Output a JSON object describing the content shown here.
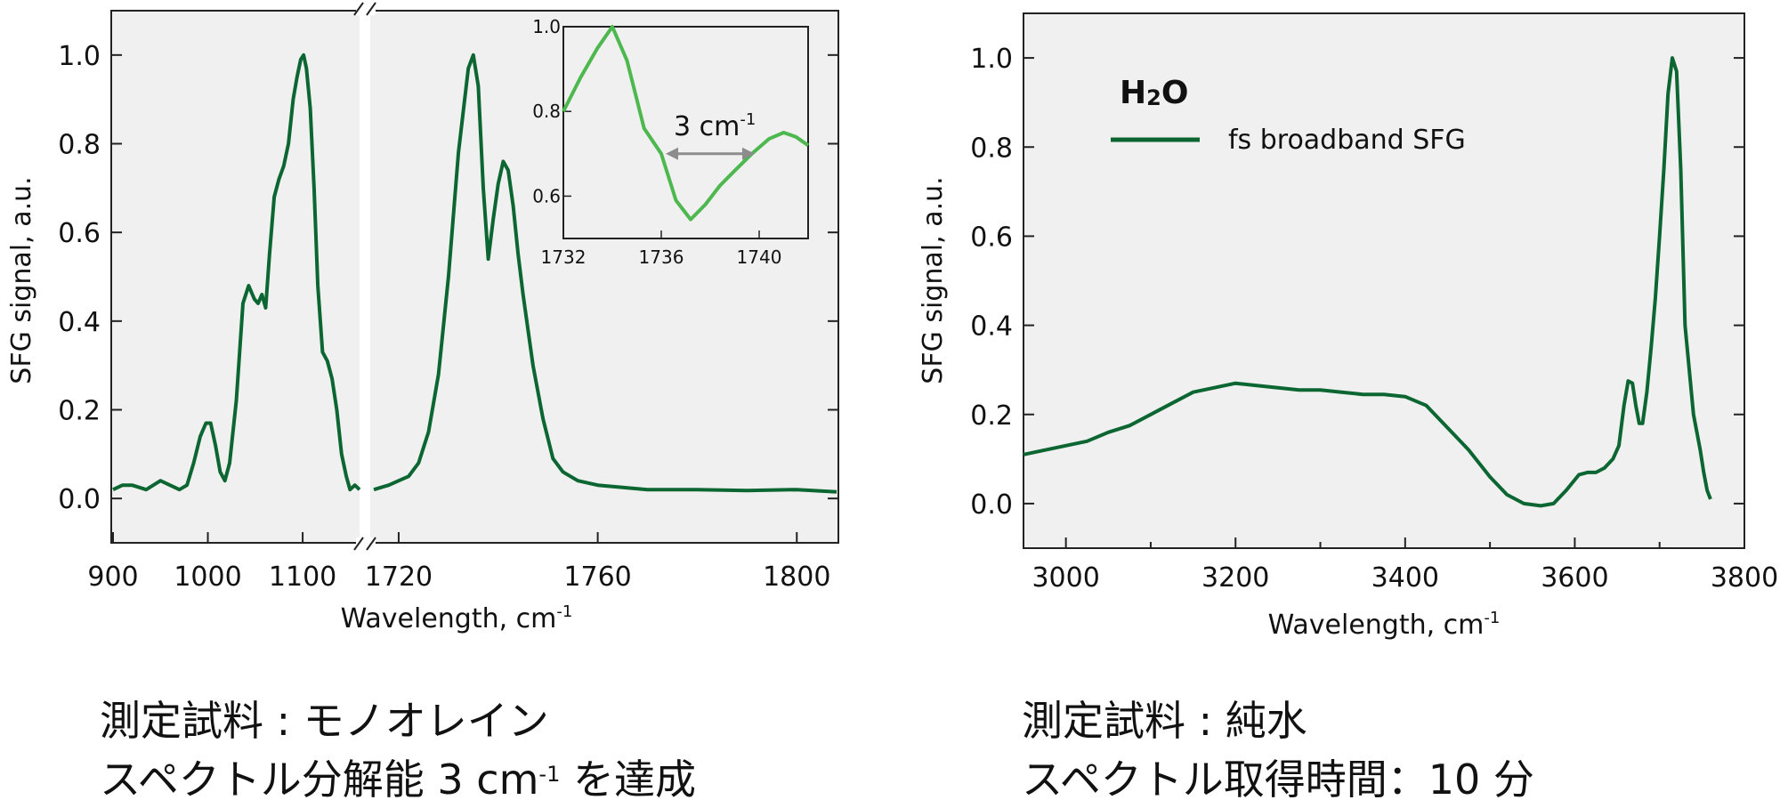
{
  "colors": {
    "line": "#0b6632",
    "inset_line": "#4cb84e",
    "plot_bg": "#f0f0f0",
    "arrow": "#8c8c8c"
  },
  "chart_data": [
    {
      "type": "line",
      "panel": "left",
      "ylabel": "SFG signal, a.u.",
      "xlabel": "Wavelength, cm",
      "xlabel_sup": "-1",
      "ylim": [
        -0.1,
        1.1
      ],
      "yticks": [
        0.0,
        0.2,
        0.4,
        0.6,
        0.8,
        1.0
      ],
      "ytick_labels": [
        "0.0",
        "0.2",
        "0.4",
        "0.6",
        "0.8",
        "1.0"
      ],
      "broken_x_axis": true,
      "xlim_segment1": [
        900,
        1160
      ],
      "xlim_segment2": [
        1715,
        1808
      ],
      "xtick_labels_segment1": [
        "900",
        "1000",
        "1100"
      ],
      "xticks_segment1": [
        900,
        1000,
        1100
      ],
      "xtick_labels_segment2": [
        "1720",
        "1760",
        "1800"
      ],
      "xticks_segment2": [
        1720,
        1760,
        1800
      ],
      "series": [
        {
          "segment": 1,
          "x": [
            900,
            910,
            920,
            935,
            950,
            960,
            970,
            978,
            985,
            992,
            998,
            1003,
            1008,
            1013,
            1018,
            1023,
            1030,
            1037,
            1043,
            1049,
            1053,
            1057,
            1061,
            1065,
            1070,
            1075,
            1080,
            1085,
            1090,
            1094,
            1098,
            1101,
            1104,
            1108,
            1112,
            1116,
            1121,
            1126,
            1131,
            1136,
            1141,
            1146,
            1150,
            1155,
            1160
          ],
          "y": [
            0.02,
            0.03,
            0.03,
            0.02,
            0.04,
            0.03,
            0.02,
            0.03,
            0.08,
            0.14,
            0.17,
            0.17,
            0.12,
            0.06,
            0.04,
            0.08,
            0.22,
            0.44,
            0.48,
            0.45,
            0.44,
            0.46,
            0.43,
            0.55,
            0.68,
            0.72,
            0.75,
            0.8,
            0.9,
            0.95,
            0.99,
            1.0,
            0.97,
            0.88,
            0.7,
            0.48,
            0.33,
            0.31,
            0.27,
            0.2,
            0.1,
            0.05,
            0.02,
            0.03,
            0.02
          ]
        },
        {
          "segment": 2,
          "x": [
            1715,
            1718,
            1720,
            1722,
            1724,
            1726,
            1728,
            1730,
            1732,
            1734,
            1735,
            1736,
            1737,
            1738,
            1739,
            1740,
            1741,
            1742,
            1743,
            1744,
            1745,
            1747,
            1749,
            1751,
            1753,
            1756,
            1760,
            1765,
            1770,
            1780,
            1790,
            1800,
            1808
          ],
          "y": [
            0.02,
            0.03,
            0.04,
            0.05,
            0.08,
            0.15,
            0.28,
            0.5,
            0.78,
            0.97,
            1.0,
            0.93,
            0.7,
            0.54,
            0.63,
            0.71,
            0.76,
            0.74,
            0.66,
            0.55,
            0.46,
            0.3,
            0.18,
            0.09,
            0.06,
            0.04,
            0.03,
            0.025,
            0.02,
            0.02,
            0.018,
            0.02,
            0.015
          ]
        }
      ],
      "inset": {
        "type": "line",
        "xlim": [
          1732,
          1742
        ],
        "ylim": [
          0.5,
          1.0
        ],
        "xticks": [
          1732,
          1736,
          1740
        ],
        "xtick_labels": [
          "1732",
          "1736",
          "1740"
        ],
        "yticks": [
          0.6,
          0.8,
          1.0
        ],
        "ytick_labels": [
          "0.6",
          "0.8",
          "1.0"
        ],
        "x": [
          1732,
          1732.7,
          1733.4,
          1734,
          1734.6,
          1735.3,
          1736,
          1736.6,
          1737.2,
          1737.8,
          1738.4,
          1739,
          1739.7,
          1740.4,
          1741,
          1741.5,
          1742
        ],
        "y": [
          0.8,
          0.88,
          0.95,
          1.0,
          0.92,
          0.76,
          0.7,
          0.59,
          0.545,
          0.58,
          0.625,
          0.66,
          0.7,
          0.735,
          0.75,
          0.74,
          0.72
        ],
        "annotation": {
          "text": "3 cm",
          "sup": "-1",
          "arrow_x": [
            1736,
            1740
          ],
          "arrow_y": 0.7
        }
      }
    },
    {
      "type": "line",
      "panel": "right",
      "ylabel": "SFG signal, a.u.",
      "xlabel": "Wavelength, cm",
      "xlabel_sup": "-1",
      "xlim": [
        2950,
        3800
      ],
      "ylim": [
        -0.1,
        1.1
      ],
      "xticks": [
        3000,
        3200,
        3400,
        3600,
        3800
      ],
      "xtick_labels": [
        "3000",
        "3200",
        "3400",
        "3600",
        "3800"
      ],
      "yticks": [
        0.0,
        0.2,
        0.4,
        0.6,
        0.8,
        1.0
      ],
      "ytick_labels": [
        "0.0",
        "0.2",
        "0.4",
        "0.6",
        "0.8",
        "1.0"
      ],
      "legend": {
        "title": "H",
        "title_sub": "2",
        "title_end": "O",
        "placement": "top-left"
      },
      "series": [
        {
          "name": "fs broadband SFG",
          "x": [
            2950,
            2975,
            3000,
            3025,
            3050,
            3075,
            3100,
            3125,
            3150,
            3175,
            3200,
            3225,
            3250,
            3275,
            3300,
            3325,
            3350,
            3375,
            3400,
            3425,
            3450,
            3475,
            3500,
            3520,
            3540,
            3560,
            3575,
            3590,
            3605,
            3615,
            3625,
            3635,
            3645,
            3652,
            3658,
            3663,
            3668,
            3672,
            3676,
            3680,
            3685,
            3690,
            3695,
            3700,
            3705,
            3710,
            3715,
            3720,
            3725,
            3730,
            3740,
            3748,
            3752,
            3756,
            3760
          ],
          "y": [
            0.11,
            0.12,
            0.13,
            0.14,
            0.16,
            0.175,
            0.2,
            0.225,
            0.25,
            0.26,
            0.27,
            0.265,
            0.26,
            0.255,
            0.255,
            0.25,
            0.245,
            0.245,
            0.24,
            0.22,
            0.17,
            0.12,
            0.06,
            0.02,
            0.0,
            -0.005,
            0.0,
            0.03,
            0.065,
            0.07,
            0.07,
            0.08,
            0.1,
            0.13,
            0.22,
            0.275,
            0.27,
            0.22,
            0.18,
            0.18,
            0.25,
            0.35,
            0.46,
            0.6,
            0.75,
            0.92,
            1.0,
            0.97,
            0.75,
            0.4,
            0.2,
            0.12,
            0.07,
            0.03,
            0.01
          ]
        }
      ]
    }
  ],
  "captions": {
    "left_line1": "測定試料 : モノオレイン",
    "left_line2_before": "スペクトル分解能 3 cm",
    "left_line2_sup": "-1",
    "left_line2_after": " を達成",
    "right_line1": "測定試料 : 純水",
    "right_line2": "スペクトル取得時間：10 分"
  }
}
